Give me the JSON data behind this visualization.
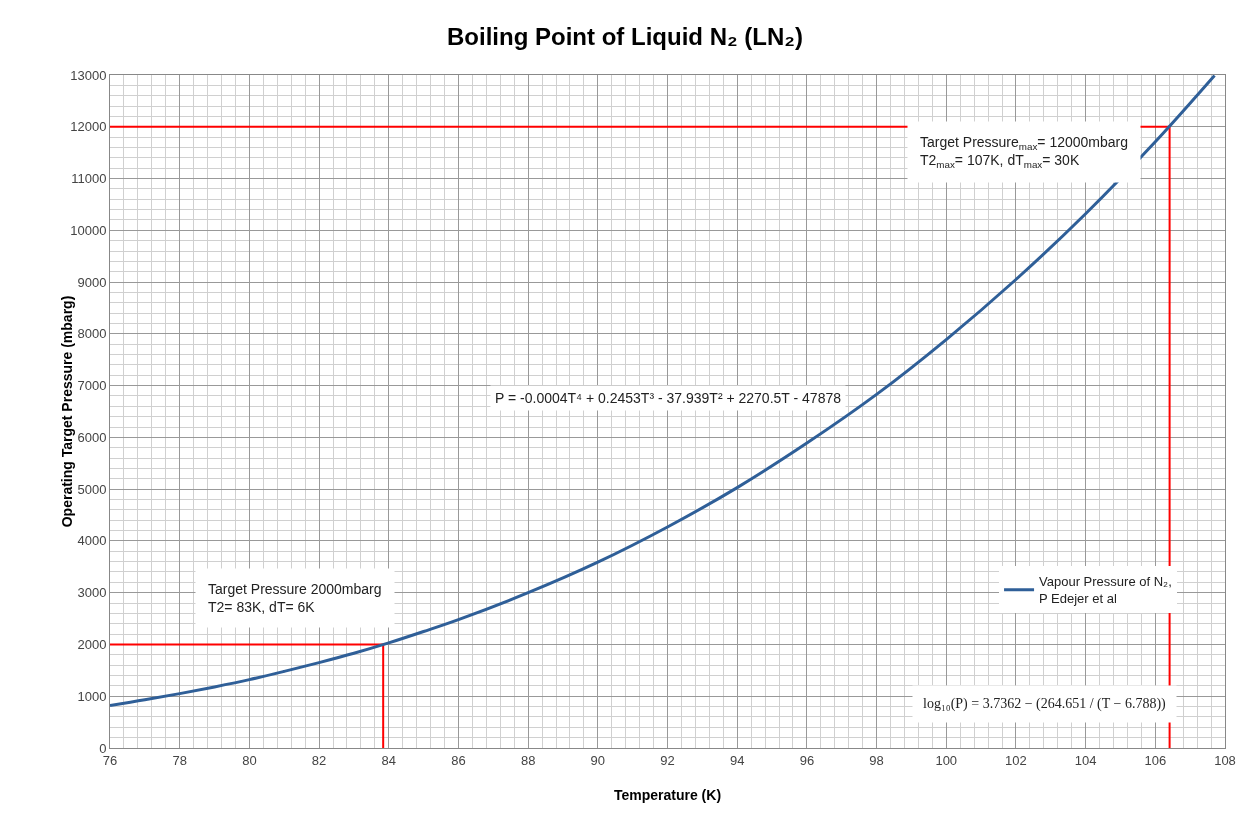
{
  "chart_data": {
    "type": "line",
    "title": "Boiling Point of Liquid N₂ (LN₂)",
    "xlabel": "Temperature (K)",
    "ylabel": "Operating Target Pressure (mbarg)",
    "xlim": [
      76,
      108
    ],
    "xticks": [
      76,
      78,
      80,
      82,
      84,
      86,
      88,
      90,
      92,
      94,
      96,
      98,
      100,
      102,
      104,
      106,
      108
    ],
    "ylim": [
      0,
      13000
    ],
    "yticks": [
      0,
      1000,
      2000,
      3000,
      4000,
      5000,
      6000,
      7000,
      8000,
      9000,
      10000,
      11000,
      12000,
      13000
    ],
    "grid": true,
    "legend": "bottom right",
    "marker": "none",
    "line_style": "solid",
    "series": [
      {
        "name": "Vapour Pressure of N₂,\nP Edejer et al",
        "color": "#2f5f98",
        "x": [
          76,
          77,
          78,
          79,
          80,
          81,
          82,
          83,
          84,
          85,
          86,
          88,
          90,
          92,
          94,
          96,
          98,
          100,
          102,
          104,
          106,
          107.7
        ],
        "values": [
          820,
          930,
          1050,
          1180,
          1320,
          1480,
          1650,
          1830,
          2030,
          2250,
          2480,
          3000,
          3590,
          4270,
          5030,
          5890,
          6830,
          7890,
          9050,
          10320,
          11710,
          12990
        ]
      },
      {
        "color": "#ff0000",
        "x": [
          76,
          83.84,
          83.84
        ],
        "values": [
          2000,
          2000,
          0
        ]
      },
      {
        "color": "#ff0000",
        "x": [
          76,
          106.41,
          106.41
        ],
        "values": [
          12000,
          12000,
          0
        ]
      }
    ],
    "annotations": [
      "Target Pressure 2000mbarg\nT2= 83K, dT= 6K",
      "Target Pressure$_{max}$= 12000mbarg\nT2$_{max}$= 107K, dT$_{max}$= 30K",
      "P = -0.0004T⁴ + 0.2453T³ - 37.939T² + 2270.5T - 47878",
      "log₁₀(P) = 3.7362 − (264.651 / (T − 6.788))"
    ]
  }
}
